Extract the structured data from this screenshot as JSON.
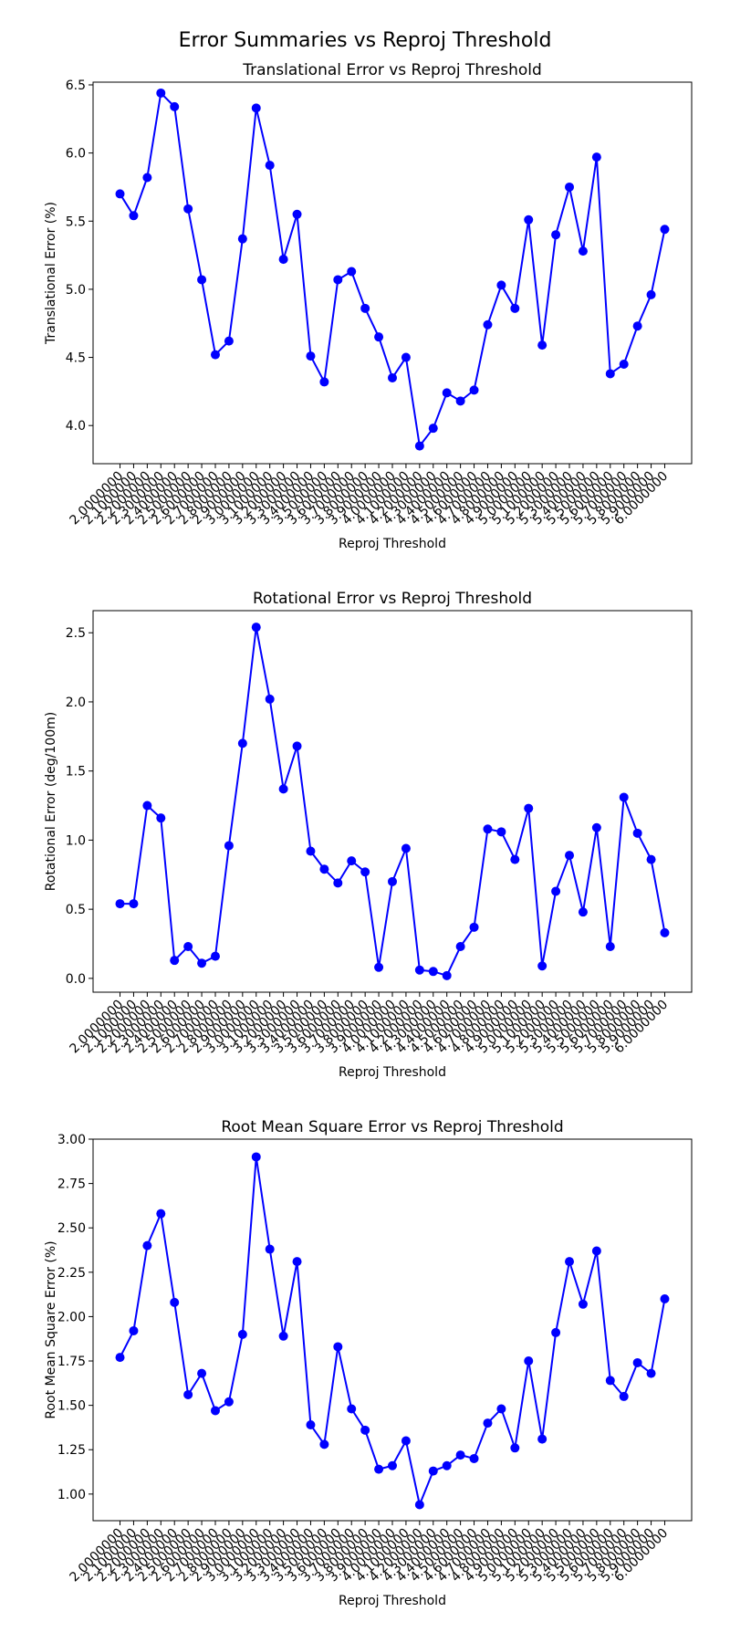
{
  "suptitle": "Error Summaries vs Reproj Threshold",
  "x_ticks": [
    "2.0000000",
    "2.1000000",
    "2.2000000",
    "2.3000000",
    "2.4000000",
    "2.5000000",
    "2.6000000",
    "2.7000000",
    "2.8000000",
    "2.9000000",
    "3.0000000",
    "3.1000000",
    "3.2000000",
    "3.3000000",
    "3.4000000",
    "3.5000000",
    "3.6000000",
    "3.7000000",
    "3.8000000",
    "3.9000000",
    "4.0000000",
    "4.1000000",
    "4.2000000",
    "4.3000000",
    "4.4000000",
    "4.5000000",
    "4.6000000",
    "4.7000000",
    "4.8000000",
    "4.9000000",
    "5.0000000",
    "5.1000000",
    "5.2000000",
    "5.3000000",
    "5.4000000",
    "5.5000000",
    "5.6000000",
    "5.7000000",
    "5.8000000",
    "5.9000000",
    "6.0000000"
  ],
  "color": "#0000ff",
  "chart_data": [
    {
      "type": "line",
      "title": "Translational Error vs Reproj Threshold",
      "xlabel": "Reproj Threshold",
      "ylabel": "Translational Error (%)",
      "ylim": [
        3.72,
        6.52
      ],
      "yticks": [
        4.0,
        4.5,
        5.0,
        5.5,
        6.0,
        6.5
      ],
      "ytick_labels": [
        "4.0",
        "4.5",
        "5.0",
        "5.5",
        "6.0",
        "6.5"
      ],
      "values": [
        5.7,
        5.54,
        5.82,
        6.44,
        6.34,
        5.59,
        5.07,
        4.52,
        4.62,
        5.37,
        6.33,
        5.91,
        5.22,
        5.55,
        4.51,
        4.32,
        5.07,
        5.13,
        4.86,
        4.65,
        4.35,
        4.5,
        3.85,
        3.98,
        4.24,
        4.18,
        4.26,
        4.74,
        5.03,
        4.86,
        5.51,
        4.59,
        5.4,
        5.75,
        5.28,
        5.97,
        4.38,
        4.45,
        4.73,
        4.96,
        5.44
      ]
    },
    {
      "type": "line",
      "title": "Rotational Error vs Reproj Threshold",
      "xlabel": "Reproj Threshold",
      "ylabel": "Rotational Error (deg/100m)",
      "ylim": [
        -0.1,
        2.66
      ],
      "yticks": [
        0.0,
        0.5,
        1.0,
        1.5,
        2.0,
        2.5
      ],
      "ytick_labels": [
        "0.0",
        "0.5",
        "1.0",
        "1.5",
        "2.0",
        "2.5"
      ],
      "values": [
        0.54,
        0.54,
        1.25,
        1.16,
        0.13,
        0.23,
        0.11,
        0.16,
        0.96,
        1.7,
        2.54,
        2.02,
        1.37,
        1.68,
        0.92,
        0.79,
        0.69,
        0.85,
        0.77,
        0.08,
        0.7,
        0.94,
        0.06,
        0.05,
        0.02,
        0.23,
        0.37,
        1.08,
        1.06,
        0.86,
        1.23,
        0.09,
        0.63,
        0.89,
        0.48,
        1.09,
        0.23,
        1.31,
        1.05,
        0.86,
        0.33
      ]
    },
    {
      "type": "line",
      "title": "Root Mean Square Error vs Reproj Threshold",
      "xlabel": "Reproj Threshold",
      "ylabel": "Root Mean Square Error (%)",
      "ylim": [
        0.85,
        3.0
      ],
      "yticks": [
        1.0,
        1.25,
        1.5,
        1.75,
        2.0,
        2.25,
        2.5,
        2.75,
        3.0
      ],
      "ytick_labels": [
        "1.00",
        "1.25",
        "1.50",
        "1.75",
        "2.00",
        "2.25",
        "2.50",
        "2.75",
        "3.00"
      ],
      "values": [
        1.77,
        1.92,
        2.4,
        2.58,
        2.08,
        1.56,
        1.68,
        1.47,
        1.52,
        1.9,
        2.9,
        2.38,
        1.89,
        2.31,
        1.39,
        1.28,
        1.83,
        1.48,
        1.36,
        1.14,
        1.16,
        1.3,
        0.94,
        1.13,
        1.16,
        1.22,
        1.2,
        1.4,
        1.48,
        1.26,
        1.75,
        1.31,
        1.91,
        2.31,
        2.07,
        2.37,
        1.64,
        1.55,
        1.74,
        1.68,
        2.1
      ]
    }
  ]
}
